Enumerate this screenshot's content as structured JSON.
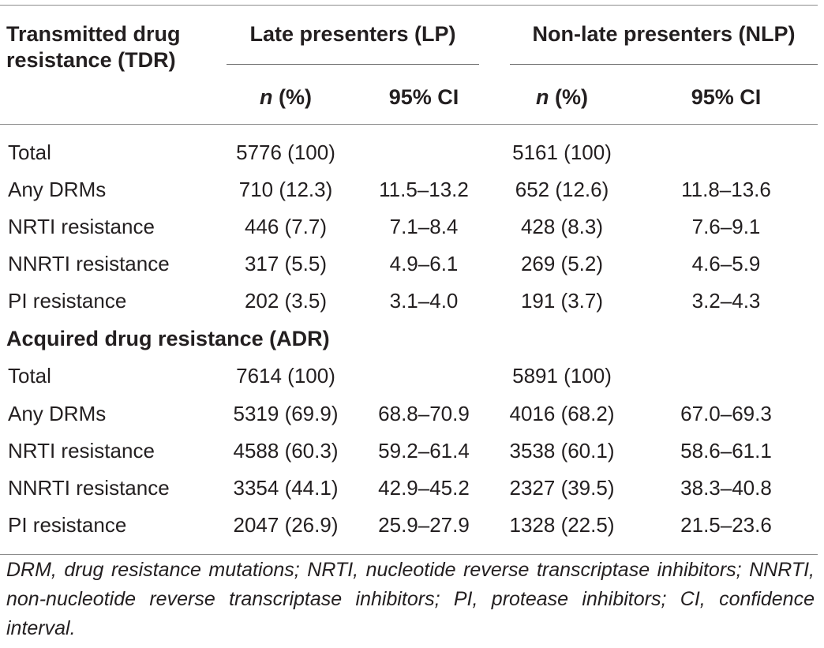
{
  "header": {
    "tdr_heading_line1": "Transmitted drug",
    "tdr_heading_line2": "resistance (TDR)",
    "lp_group": "Late presenters (LP)",
    "nlp_group": "Non-late presenters (NLP)",
    "n_symbol": "n",
    "n_suffix": " (%)",
    "ci_label": "95% CI"
  },
  "tdr_rows": [
    {
      "label": "Total",
      "lp_n": "5776 (100)",
      "lp_ci": "",
      "nlp_n": "5161 (100)",
      "nlp_ci": ""
    },
    {
      "label": "Any DRMs",
      "lp_n": "710 (12.3)",
      "lp_ci": "11.5–13.2",
      "nlp_n": "652 (12.6)",
      "nlp_ci": "11.8–13.6"
    },
    {
      "label": "NRTI resistance",
      "lp_n": "446 (7.7)",
      "lp_ci": "7.1–8.4",
      "nlp_n": "428 (8.3)",
      "nlp_ci": "7.6–9.1"
    },
    {
      "label": "NNRTI resistance",
      "lp_n": "317 (5.5)",
      "lp_ci": "4.9–6.1",
      "nlp_n": "269 (5.2)",
      "nlp_ci": "4.6–5.9"
    },
    {
      "label": "PI resistance",
      "lp_n": "202 (3.5)",
      "lp_ci": "3.1–4.0",
      "nlp_n": "191 (3.7)",
      "nlp_ci": "3.2–4.3"
    }
  ],
  "adr_heading": "Acquired drug resistance (ADR)",
  "adr_rows": [
    {
      "label": "Total",
      "lp_n": "7614 (100)",
      "lp_ci": "",
      "nlp_n": "5891 (100)",
      "nlp_ci": ""
    },
    {
      "label": "Any DRMs",
      "lp_n": "5319 (69.9)",
      "lp_ci": "68.8–70.9",
      "nlp_n": "4016 (68.2)",
      "nlp_ci": "67.0–69.3"
    },
    {
      "label": "NRTI resistance",
      "lp_n": "4588 (60.3)",
      "lp_ci": "59.2–61.4",
      "nlp_n": "3538 (60.1)",
      "nlp_ci": "58.6–61.1"
    },
    {
      "label": "NNRTI resistance",
      "lp_n": "3354 (44.1)",
      "lp_ci": "42.9–45.2",
      "nlp_n": "2327 (39.5)",
      "nlp_ci": "38.3–40.8"
    },
    {
      "label": "PI resistance",
      "lp_n": "2047 (26.9)",
      "lp_ci": "25.9–27.9",
      "nlp_n": "1328 (22.5)",
      "nlp_ci": "21.5–23.6"
    }
  ],
  "footnote": "DRM, drug resistance mutations; NRTI, nucleotide reverse transcriptase inhibitors; NNRTI, non-nucleotide reverse transcriptase inhibitors; PI, protease inhibitors; CI, confidence interval."
}
